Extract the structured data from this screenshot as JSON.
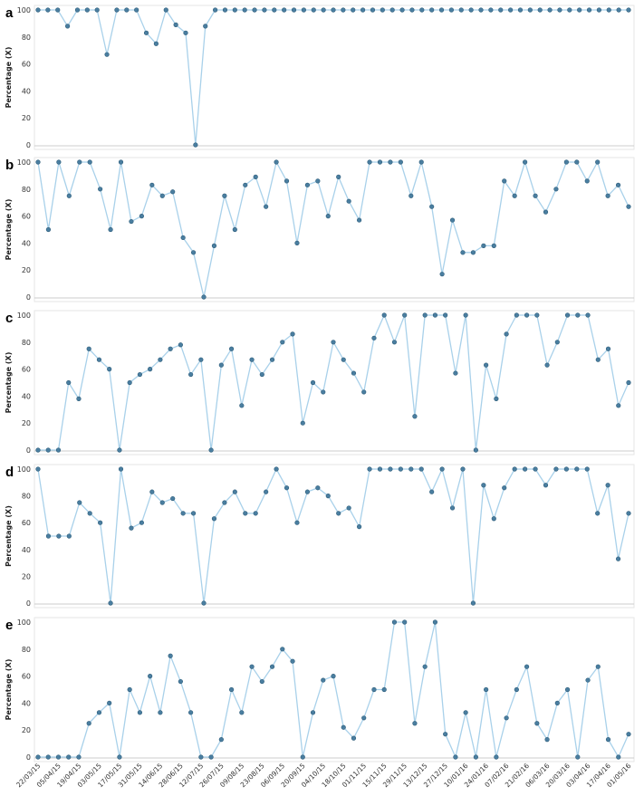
{
  "chart_data": [
    {
      "type": "line",
      "panel_label": "a",
      "ylabel": "Percentage (X)",
      "ylim": [
        0,
        100
      ],
      "yticks": [
        0,
        20,
        40,
        60,
        80,
        100
      ],
      "grid": false,
      "values": [
        100,
        100,
        100,
        88,
        100,
        100,
        100,
        67,
        100,
        100,
        100,
        83,
        75,
        100,
        89,
        83,
        0,
        88,
        100,
        100,
        100,
        100,
        100,
        100,
        100,
        100,
        100,
        100,
        100,
        100,
        100,
        100,
        100,
        100,
        100,
        100,
        100,
        100,
        100,
        100,
        100,
        100,
        100,
        100,
        100,
        100,
        100,
        100,
        100,
        100,
        100,
        100,
        100,
        100,
        100,
        100,
        100,
        100,
        100,
        100,
        100
      ]
    },
    {
      "type": "line",
      "panel_label": "b",
      "ylabel": "Percentage (X)",
      "ylim": [
        0,
        100
      ],
      "yticks": [
        0,
        20,
        40,
        60,
        80,
        100
      ],
      "grid": false,
      "values": [
        100,
        50,
        100,
        75,
        100,
        100,
        80,
        50,
        100,
        56,
        60,
        83,
        75,
        78,
        44,
        33,
        0,
        38,
        75,
        50,
        83,
        89,
        67,
        100,
        86,
        40,
        83,
        86,
        60,
        89,
        71,
        57,
        100,
        100,
        100,
        100,
        75,
        100,
        67,
        17,
        57,
        33,
        33,
        38,
        38,
        86,
        75,
        100,
        75,
        63,
        80,
        100,
        100,
        86,
        100,
        75,
        83,
        67
      ]
    },
    {
      "type": "line",
      "panel_label": "c",
      "ylabel": "Percentage (X)",
      "ylim": [
        0,
        100
      ],
      "yticks": [
        0,
        20,
        40,
        60,
        80,
        100
      ],
      "grid": false,
      "values": [
        0,
        0,
        0,
        50,
        38,
        75,
        67,
        60,
        0,
        50,
        56,
        60,
        67,
        75,
        78,
        56,
        67,
        0,
        63,
        75,
        33,
        67,
        56,
        67,
        80,
        86,
        20,
        50,
        43,
        80,
        67,
        57,
        43,
        83,
        100,
        80,
        100,
        25,
        100,
        100,
        100,
        57,
        100,
        0,
        63,
        38,
        86,
        100,
        100,
        100,
        63,
        80,
        100,
        100,
        100,
        67,
        75,
        33,
        50
      ]
    },
    {
      "type": "line",
      "panel_label": "d",
      "ylabel": "Percentage (X)",
      "ylim": [
        0,
        100
      ],
      "yticks": [
        0,
        20,
        40,
        60,
        80,
        100
      ],
      "grid": false,
      "values": [
        100,
        50,
        50,
        50,
        75,
        67,
        60,
        0,
        100,
        56,
        60,
        83,
        75,
        78,
        67,
        67,
        0,
        63,
        75,
        83,
        67,
        67,
        83,
        100,
        86,
        60,
        83,
        86,
        80,
        67,
        71,
        57,
        100,
        100,
        100,
        100,
        100,
        100,
        83,
        100,
        71,
        100,
        0,
        88,
        63,
        86,
        100,
        100,
        100,
        88,
        100,
        100,
        100,
        100,
        67,
        88,
        33,
        67
      ]
    },
    {
      "type": "line",
      "panel_label": "e",
      "ylabel": "Percentage (X)",
      "ylim": [
        0,
        100
      ],
      "yticks": [
        0,
        20,
        40,
        60,
        80,
        100
      ],
      "grid": false,
      "values": [
        0,
        0,
        0,
        0,
        0,
        25,
        33,
        40,
        0,
        50,
        33,
        60,
        33,
        75,
        56,
        33,
        0,
        0,
        13,
        50,
        33,
        67,
        56,
        67,
        80,
        71,
        0,
        33,
        57,
        60,
        22,
        14,
        29,
        50,
        50,
        100,
        100,
        25,
        67,
        100,
        17,
        0,
        33,
        0,
        50,
        0,
        29,
        50,
        67,
        25,
        13,
        40,
        50,
        0,
        57,
        67,
        13,
        0,
        17
      ],
      "x_ticks": [
        "22/03/15",
        "05/04/15",
        "19/04/15",
        "03/05/15",
        "17/05/15",
        "31/05/15",
        "14/06/15",
        "28/06/15",
        "12/07/15",
        "26/07/15",
        "09/08/15",
        "23/08/15",
        "06/09/15",
        "20/09/15",
        "04/10/15",
        "18/10/15",
        "01/11/15",
        "15/11/15",
        "29/11/15",
        "13/12/15",
        "27/12/15",
        "10/01/16",
        "24/01/16",
        "07/02/16",
        "21/02/16",
        "06/03/16",
        "20/03/16",
        "03/04/16",
        "17/04/16",
        "01/05/16"
      ]
    }
  ],
  "style": {
    "line_color": "#a9d1ea",
    "marker_color": "#4a7ea0"
  }
}
